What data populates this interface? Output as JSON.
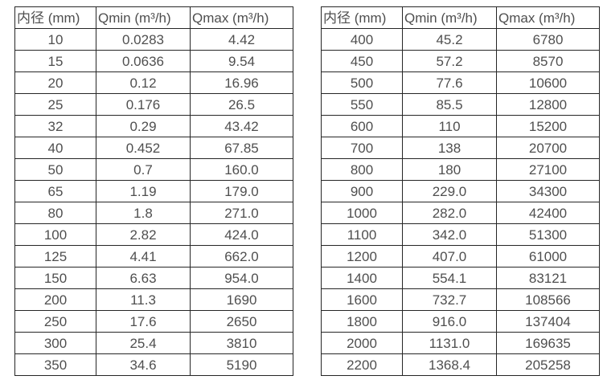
{
  "colors": {
    "background": "#ffffff",
    "table_border": "#262626",
    "text": "#4f4f4f"
  },
  "tables": [
    {
      "name": "small-diameters",
      "headers": [
        "内径 (mm)",
        "Qmin (m³/h)",
        "Qmax (m³/h)"
      ],
      "rows": [
        [
          "10",
          "0.0283",
          "4.42"
        ],
        [
          "15",
          "0.0636",
          "9.54"
        ],
        [
          "20",
          "0.12",
          "16.96"
        ],
        [
          "25",
          "0.176",
          "26.5"
        ],
        [
          "32",
          "0.29",
          "43.42"
        ],
        [
          "40",
          "0.452",
          "67.85"
        ],
        [
          "50",
          "0.7",
          "160.0"
        ],
        [
          "65",
          "1.19",
          "179.0"
        ],
        [
          "80",
          "1.8",
          "271.0"
        ],
        [
          "100",
          "2.82",
          "424.0"
        ],
        [
          "125",
          "4.41",
          "662.0"
        ],
        [
          "150",
          "6.63",
          "954.0"
        ],
        [
          "200",
          "11.3",
          "1690"
        ],
        [
          "250",
          "17.6",
          "2650"
        ],
        [
          "300",
          "25.4",
          "3810"
        ],
        [
          "350",
          "34.6",
          "5190"
        ]
      ]
    },
    {
      "name": "large-diameters",
      "headers": [
        "内径 (mm)",
        "Qmin (m³/h)",
        "Qmax (m³/h)"
      ],
      "rows": [
        [
          "400",
          "45.2",
          "6780"
        ],
        [
          "450",
          "57.2",
          "8570"
        ],
        [
          "500",
          "77.6",
          "10600"
        ],
        [
          "550",
          "85.5",
          "12800"
        ],
        [
          "600",
          "110",
          "15200"
        ],
        [
          "700",
          "138",
          "20700"
        ],
        [
          "800",
          "180",
          "27100"
        ],
        [
          "900",
          "229.0",
          "34300"
        ],
        [
          "1000",
          "282.0",
          "42400"
        ],
        [
          "1100",
          "342.0",
          "51300"
        ],
        [
          "1200",
          "407.0",
          "61000"
        ],
        [
          "1400",
          "554.1",
          "83121"
        ],
        [
          "1600",
          "732.7",
          "108566"
        ],
        [
          "1800",
          "916.0",
          "137404"
        ],
        [
          "2000",
          "1131.0",
          "169635"
        ],
        [
          "2200",
          "1368.4",
          "205258"
        ]
      ]
    }
  ]
}
